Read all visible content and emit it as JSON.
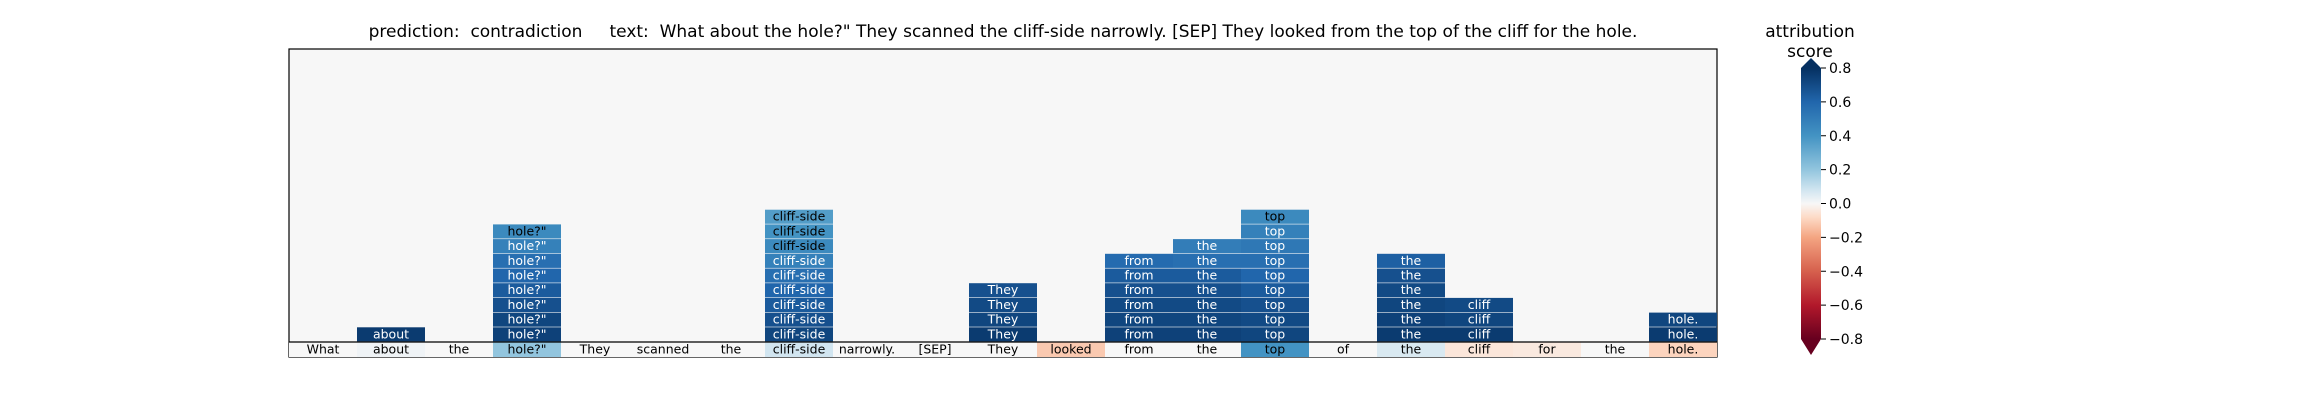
{
  "header": {
    "prediction_label": "prediction:",
    "prediction_value": "contradiction",
    "text_label": "text:",
    "text_value": "What about the hole?\" They scanned the cliff-side narrowly. [SEP] They looked from the top of the cliff for the hole."
  },
  "colors": {
    "negative_end": "#67001f",
    "positive_end": "#053061",
    "panel_background": "#f7f7f7"
  },
  "chart_data": {
    "type": "heatmap",
    "tokens": [
      "What",
      "about",
      "the",
      "hole?\"",
      "They",
      "scanned",
      "the",
      "cliff-side",
      "narrowly.",
      "[SEP]",
      "They",
      "looked",
      "from",
      "the",
      "top",
      "of",
      "the",
      "cliff",
      "for",
      "the",
      "hole."
    ],
    "base_scores": [
      0.0,
      0.02,
      0.0,
      0.25,
      0.0,
      0.0,
      0.0,
      0.1,
      0.0,
      0.0,
      0.0,
      -0.15,
      0.0,
      0.0,
      0.5,
      0.0,
      0.08,
      -0.06,
      -0.05,
      0.0,
      -0.12
    ],
    "stacked_rows": [
      {
        "token_index": 1,
        "label": "about",
        "values": [
          0.95
        ]
      },
      {
        "token_index": 3,
        "label": "hole?\"",
        "values": [
          0.55,
          0.6,
          0.7,
          0.75,
          0.8,
          0.85,
          0.9,
          0.92
        ]
      },
      {
        "token_index": 7,
        "label": "cliff-side",
        "values": [
          0.45,
          0.5,
          0.55,
          0.6,
          0.7,
          0.75,
          0.8,
          0.85,
          0.9
        ]
      },
      {
        "token_index": 10,
        "label": "They",
        "values": [
          0.85,
          0.88,
          0.9,
          0.95
        ]
      },
      {
        "token_index": 12,
        "label": "from",
        "values": [
          0.72,
          0.8,
          0.85,
          0.88,
          0.9,
          0.92
        ]
      },
      {
        "token_index": 13,
        "label": "the",
        "values": [
          0.62,
          0.7,
          0.8,
          0.85,
          0.88,
          0.9,
          0.92
        ]
      },
      {
        "token_index": 14,
        "label": "top",
        "values": [
          0.55,
          0.6,
          0.65,
          0.7,
          0.75,
          0.8,
          0.85,
          0.88,
          0.9
        ]
      },
      {
        "token_index": 16,
        "label": "the",
        "values": [
          0.78,
          0.85,
          0.88,
          0.9,
          0.92,
          0.95
        ]
      },
      {
        "token_index": 17,
        "label": "cliff",
        "values": [
          0.88,
          0.9,
          0.95
        ]
      },
      {
        "token_index": 20,
        "label": "hole.",
        "values": [
          0.9,
          0.95
        ]
      }
    ],
    "colorbar": {
      "title": "attribution score",
      "range": [
        -0.8,
        0.8
      ],
      "ticks": [
        "0.8",
        "0.6",
        "0.4",
        "0.2",
        "0.0",
        "−0.2",
        "−0.4",
        "−0.6",
        "−0.8"
      ]
    }
  }
}
